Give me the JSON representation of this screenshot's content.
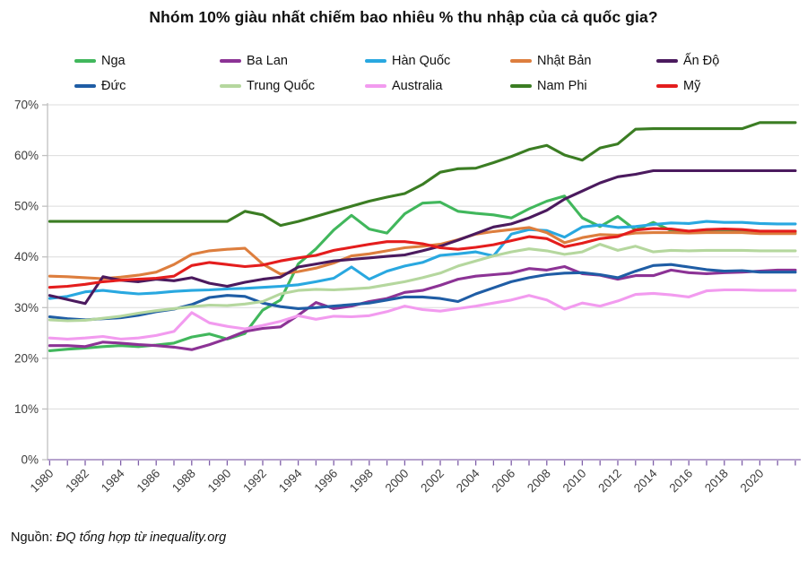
{
  "header": {
    "title": "Nhóm 10% giàu nhất chiếm bao nhiêu % thu nhập của cả quốc gia?"
  },
  "source": {
    "prefix": "Nguồn: ",
    "text": "ĐQ tổng hợp từ inequality.org"
  },
  "style": {
    "grid_color": "#dcdcdc",
    "y_axis_color": "#c0c0c0",
    "x_axis_color": "#ab96c6",
    "x_tick_color": "#7f5fa8",
    "tick_label_color": "#3d3d3d",
    "text_color": "#111111"
  },
  "chart_data": {
    "type": "line",
    "title": "Nhóm 10% giàu nhất chiếm bao nhiêu % thu nhập của cả quốc gia?",
    "xlabel": "",
    "ylabel": "",
    "ylim": [
      0,
      70
    ],
    "grid": true,
    "legend_position": "top",
    "ytick_labels": [
      "0%",
      "10%",
      "20%",
      "30%",
      "40%",
      "50%",
      "60%",
      "70%"
    ],
    "xtick_labels": [
      "1980",
      "1982",
      "1984",
      "1986",
      "1988",
      "1990",
      "1992",
      "1994",
      "1996",
      "1998",
      "2000",
      "2002",
      "2004",
      "2006",
      "2008",
      "2010",
      "2012",
      "2014",
      "2016",
      "2018",
      "2020"
    ],
    "x": [
      1980,
      1981,
      1982,
      1983,
      1984,
      1985,
      1986,
      1987,
      1988,
      1989,
      1990,
      1991,
      1992,
      1993,
      1994,
      1995,
      1996,
      1997,
      1998,
      1999,
      2000,
      2001,
      2002,
      2003,
      2004,
      2005,
      2006,
      2007,
      2008,
      2009,
      2010,
      2011,
      2012,
      2013,
      2014,
      2015,
      2016,
      2017,
      2018,
      2019,
      2020,
      2021,
      2022
    ],
    "series": [
      {
        "name": "Nga",
        "color": "#41b75c",
        "values": [
          21.5,
          21.8,
          22.0,
          22.3,
          22.5,
          22.3,
          22.6,
          23.0,
          24.2,
          24.8,
          23.8,
          24.9,
          29.5,
          31.5,
          38.6,
          41.6,
          45.3,
          48.2,
          45.5,
          44.7,
          48.5,
          50.6,
          50.8,
          49.0,
          48.6,
          48.3,
          47.7,
          49.5,
          51.0,
          52.0,
          47.7,
          46.0,
          48.0,
          45.3,
          46.8,
          45.2,
          45.0,
          45.0,
          45.1,
          45.0,
          44.9,
          44.9,
          44.9
        ]
      },
      {
        "name": "Ba Lan",
        "color": "#8c3395",
        "values": [
          22.5,
          22.5,
          22.3,
          23.2,
          23.0,
          22.7,
          22.5,
          22.2,
          21.7,
          22.7,
          23.9,
          25.3,
          25.9,
          26.2,
          28.5,
          31.0,
          29.8,
          30.3,
          31.2,
          31.8,
          33.0,
          33.4,
          34.4,
          35.6,
          36.2,
          36.5,
          36.8,
          37.7,
          37.4,
          38.1,
          36.7,
          36.4,
          35.6,
          36.3,
          36.3,
          37.4,
          36.9,
          36.7,
          36.9,
          37.0,
          37.2,
          37.4,
          37.4
        ]
      },
      {
        "name": "Hàn Quốc",
        "color": "#29a8e0",
        "values": [
          31.8,
          32.2,
          33.1,
          33.4,
          33.0,
          32.7,
          32.9,
          33.2,
          33.4,
          33.5,
          33.7,
          33.8,
          34.0,
          34.2,
          34.5,
          35.1,
          35.8,
          38.0,
          35.6,
          37.2,
          38.2,
          38.9,
          40.3,
          40.6,
          41.0,
          40.2,
          44.5,
          45.4,
          45.2,
          43.9,
          45.9,
          46.3,
          45.8,
          46.0,
          46.4,
          46.7,
          46.6,
          47.0,
          46.8,
          46.8,
          46.6,
          46.5,
          46.5
        ]
      },
      {
        "name": "Nhật Bản",
        "color": "#dd7e3e",
        "values": [
          36.2,
          36.1,
          35.9,
          35.7,
          36.0,
          36.4,
          37.0,
          38.5,
          40.5,
          41.2,
          41.5,
          41.7,
          38.6,
          36.6,
          37.1,
          37.8,
          38.8,
          40.2,
          40.6,
          41.2,
          41.8,
          42.1,
          42.5,
          43.4,
          44.5,
          45.0,
          45.4,
          45.8,
          44.8,
          42.8,
          43.8,
          44.4,
          44.3,
          44.7,
          44.8,
          44.8,
          44.7,
          44.8,
          44.8,
          44.8,
          44.6,
          44.6,
          44.6
        ]
      },
      {
        "name": "Ấn Độ",
        "color": "#4b1a5e",
        "values": [
          32.4,
          31.6,
          30.8,
          36.1,
          35.4,
          35.1,
          35.6,
          35.3,
          35.9,
          34.8,
          34.2,
          35.0,
          35.6,
          36.0,
          38.0,
          38.6,
          39.2,
          39.5,
          39.8,
          40.1,
          40.4,
          41.2,
          42.1,
          43.3,
          44.6,
          45.9,
          46.5,
          47.7,
          49.2,
          51.4,
          53.0,
          54.6,
          55.8,
          56.3,
          57.0,
          57.0,
          57.0,
          57.0,
          57.0,
          57.0,
          57.0,
          57.0,
          57.0
        ]
      },
      {
        "name": "Đức",
        "color": "#1f5da5",
        "values": [
          28.2,
          27.8,
          27.6,
          27.8,
          28.0,
          28.5,
          29.2,
          29.7,
          30.6,
          32.0,
          32.4,
          32.2,
          30.9,
          30.2,
          29.8,
          30.0,
          30.3,
          30.6,
          30.9,
          31.5,
          32.1,
          32.1,
          31.8,
          31.2,
          32.7,
          33.9,
          35.1,
          35.9,
          36.5,
          36.8,
          36.9,
          36.5,
          35.9,
          37.2,
          38.3,
          38.5,
          38.0,
          37.5,
          37.2,
          37.3,
          37.0,
          37.0,
          37.0
        ]
      },
      {
        "name": "Trung Quốc",
        "color": "#b5d79e",
        "values": [
          27.6,
          27.4,
          27.5,
          27.9,
          28.3,
          28.9,
          29.4,
          29.8,
          30.2,
          30.5,
          30.4,
          30.7,
          31.2,
          32.7,
          33.4,
          33.6,
          33.5,
          33.7,
          33.9,
          34.5,
          35.1,
          35.9,
          36.8,
          38.2,
          39.2,
          40.2,
          41.0,
          41.6,
          41.2,
          40.5,
          41.0,
          42.5,
          41.3,
          42.1,
          41.0,
          41.3,
          41.2,
          41.3,
          41.3,
          41.3,
          41.2,
          41.2,
          41.2
        ]
      },
      {
        "name": "Australia",
        "color": "#f29bef",
        "values": [
          24.0,
          23.8,
          24.0,
          24.3,
          23.8,
          24.0,
          24.5,
          25.3,
          29.0,
          27.0,
          26.3,
          25.8,
          26.5,
          27.3,
          28.4,
          27.7,
          28.3,
          28.2,
          28.4,
          29.2,
          30.3,
          29.6,
          29.3,
          29.8,
          30.3,
          30.9,
          31.5,
          32.4,
          31.5,
          29.7,
          30.9,
          30.3,
          31.3,
          32.6,
          32.8,
          32.5,
          32.1,
          33.3,
          33.5,
          33.5,
          33.4,
          33.4,
          33.4
        ]
      },
      {
        "name": "Nam Phi",
        "color": "#3b7d23",
        "values": [
          47.0,
          47.0,
          47.0,
          47.0,
          47.0,
          47.0,
          47.0,
          47.0,
          47.0,
          47.0,
          47.0,
          49.0,
          48.3,
          46.2,
          47.0,
          48.0,
          49.0,
          50.0,
          51.0,
          51.8,
          52.5,
          54.3,
          56.7,
          57.4,
          57.5,
          58.6,
          59.8,
          61.2,
          62.0,
          60.1,
          59.1,
          61.5,
          62.3,
          65.2,
          65.3,
          65.3,
          65.3,
          65.3,
          65.3,
          65.3,
          66.5,
          66.5,
          66.5
        ]
      },
      {
        "name": "Mỹ",
        "color": "#e41d1d",
        "values": [
          34.0,
          34.2,
          34.6,
          35.1,
          35.4,
          35.6,
          35.8,
          36.2,
          38.3,
          38.9,
          38.5,
          38.1,
          38.4,
          39.2,
          39.8,
          40.3,
          41.3,
          41.9,
          42.5,
          43.0,
          43.0,
          42.6,
          41.8,
          41.5,
          41.9,
          42.4,
          43.2,
          44.0,
          43.6,
          42.0,
          42.7,
          43.6,
          44.0,
          45.3,
          45.6,
          45.5,
          45.1,
          45.4,
          45.5,
          45.4,
          45.1,
          45.1,
          45.1
        ]
      }
    ]
  }
}
